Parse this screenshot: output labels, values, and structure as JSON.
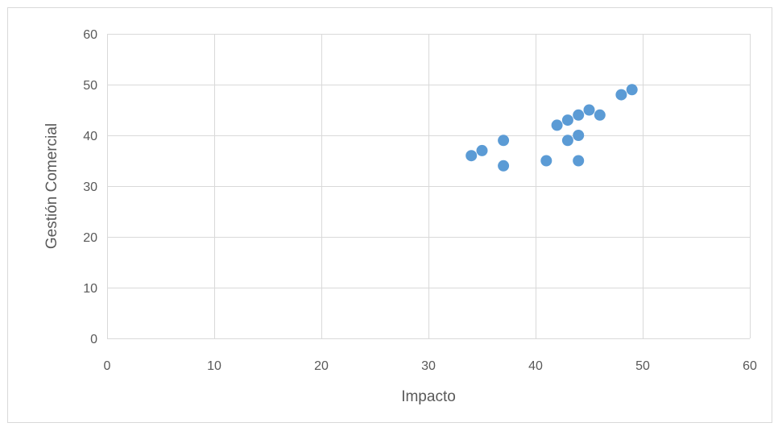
{
  "chart_data": {
    "type": "scatter",
    "title": "",
    "xlabel": "Impacto",
    "ylabel": "Gestión Comercial",
    "xlim": [
      0,
      60
    ],
    "ylim": [
      0,
      60
    ],
    "xticks": [
      0,
      10,
      20,
      30,
      40,
      50,
      60
    ],
    "yticks": [
      0,
      10,
      20,
      30,
      40,
      50,
      60
    ],
    "grid": true,
    "legend": "none",
    "marker_color": "#5B9BD5",
    "gridline_color": "#d9d9d9",
    "points": [
      {
        "x": 34,
        "y": 36
      },
      {
        "x": 35,
        "y": 37
      },
      {
        "x": 37,
        "y": 39
      },
      {
        "x": 37,
        "y": 34
      },
      {
        "x": 41,
        "y": 35
      },
      {
        "x": 42,
        "y": 42
      },
      {
        "x": 43,
        "y": 43
      },
      {
        "x": 43,
        "y": 39
      },
      {
        "x": 44,
        "y": 44
      },
      {
        "x": 44,
        "y": 40
      },
      {
        "x": 44,
        "y": 35
      },
      {
        "x": 45,
        "y": 45
      },
      {
        "x": 46,
        "y": 44
      },
      {
        "x": 48,
        "y": 48
      },
      {
        "x": 49,
        "y": 49
      }
    ]
  }
}
